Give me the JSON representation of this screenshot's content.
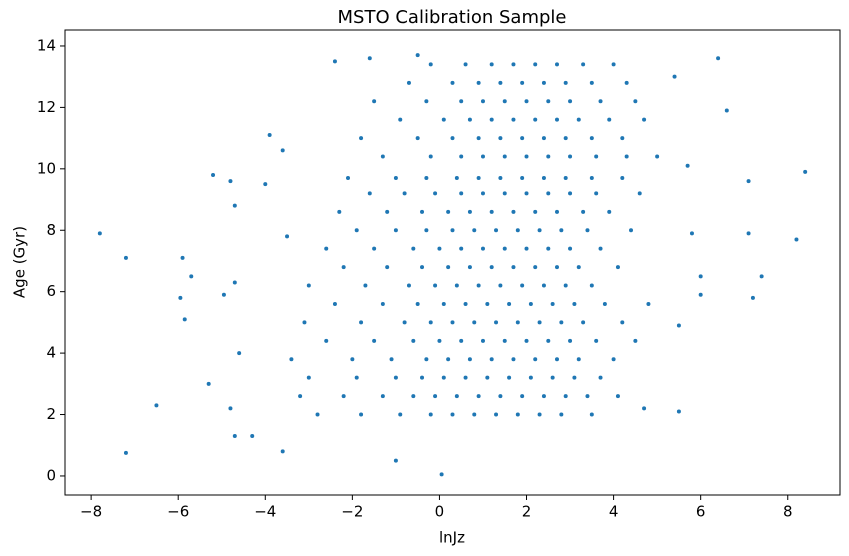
{
  "chart_data": {
    "type": "scatter",
    "title": "MSTO Calibration Sample",
    "x_label": "lnJz",
    "y_label": "Age (Gyr)",
    "color": "#1f77b4",
    "xlim": [
      -8.6,
      9.2
    ],
    "ylim": [
      -0.62,
      14.52
    ],
    "xticks": [
      {
        "value": -8,
        "label": "−8"
      },
      {
        "value": -6,
        "label": "−6"
      },
      {
        "value": -4,
        "label": "−4"
      },
      {
        "value": -2,
        "label": "−2"
      },
      0,
      2,
      4,
      6,
      8
    ],
    "yticks": [
      0,
      2,
      4,
      6,
      8,
      10,
      12,
      14
    ],
    "x": [
      -7.8,
      -7.2,
      -7.2,
      -6.5,
      -5.9,
      -5.95,
      -5.85,
      -5.7,
      -5.2,
      -5.3,
      -4.8,
      -4.7,
      -4.95,
      -4.7,
      -4.6,
      -4.8,
      -4.7,
      -4.0,
      -3.9,
      -3.6,
      -3.5,
      -4.3,
      -3.6,
      8.4,
      8.2,
      7.4,
      7.2,
      7.1,
      7.1,
      6.6,
      6.4,
      6.0,
      6.0,
      5.8,
      5.5,
      5.5,
      5.7,
      4.7,
      5.4,
      -2.4,
      -1.6,
      -0.5,
      0.05,
      -1.0,
      -2.8,
      -1.8,
      -0.9,
      -0.2,
      0.3,
      0.8,
      1.3,
      1.8,
      2.3,
      2.8,
      3.5,
      -3.2,
      -2.2,
      -1.3,
      -0.6,
      -0.1,
      0.4,
      0.9,
      1.4,
      1.9,
      2.4,
      2.9,
      3.4,
      4.1,
      -3.0,
      -1.9,
      -1.0,
      -0.4,
      0.1,
      0.6,
      1.1,
      1.6,
      2.1,
      2.6,
      3.1,
      3.7,
      -3.4,
      -2.0,
      -1.1,
      -0.3,
      0.2,
      0.7,
      1.2,
      1.7,
      2.2,
      2.7,
      3.2,
      4.0,
      -2.6,
      -1.5,
      -0.6,
      0,
      0.5,
      1,
      1.5,
      2,
      2.5,
      3,
      3.6,
      4.5,
      -3.1,
      -1.8,
      -0.8,
      -0.2,
      0.3,
      0.8,
      1.3,
      1.8,
      2.3,
      2.8,
      3.3,
      4.2,
      -2.4,
      -1.3,
      -0.5,
      0.1,
      0.6,
      1.1,
      1.6,
      2.1,
      2.6,
      3.1,
      3.8,
      4.8,
      -3.0,
      -1.7,
      -0.7,
      -0.1,
      0.4,
      0.9,
      1.4,
      1.9,
      2.4,
      2.9,
      3.5,
      -2.2,
      -1.2,
      -0.4,
      0.2,
      0.7,
      1.2,
      1.7,
      2.2,
      2.7,
      3.2,
      4.1,
      -2.6,
      -1.5,
      -0.6,
      0,
      0.5,
      1,
      1.5,
      2,
      2.5,
      3,
      3.7,
      -1.9,
      -1.0,
      -0.3,
      0.3,
      0.8,
      1.3,
      1.8,
      2.3,
      2.8,
      3.4,
      4.4,
      -2.3,
      -1.2,
      -0.4,
      0.2,
      0.7,
      1.2,
      1.7,
      2.2,
      2.7,
      3.3,
      3.9,
      -1.6,
      -0.8,
      -0.1,
      0.5,
      1.0,
      1.5,
      2.0,
      2.5,
      3.0,
      3.6,
      4.6,
      -2.1,
      -1.0,
      -0.3,
      0.4,
      0.9,
      1.4,
      1.9,
      2.4,
      2.9,
      3.5,
      4.2,
      -1.3,
      -0.2,
      0.5,
      1.0,
      1.5,
      2.0,
      2.5,
      3.0,
      3.6,
      4.3,
      5.0,
      -1.8,
      -0.5,
      0.3,
      0.9,
      1.4,
      1.9,
      2.4,
      2.9,
      3.5,
      4.2,
      -0.9,
      0.1,
      0.7,
      1.2,
      1.7,
      2.2,
      2.7,
      3.2,
      3.9,
      4.7,
      -1.5,
      -0.3,
      0.5,
      1.0,
      1.5,
      2.0,
      2.5,
      3.0,
      3.7,
      4.5,
      -0.7,
      0.3,
      0.9,
      1.4,
      1.9,
      2.4,
      2.9,
      3.5,
      4.3,
      -0.2,
      0.6,
      1.2,
      1.7,
      2.2,
      2.7,
      3.3,
      4.0
    ],
    "y": [
      7.9,
      7.1,
      0.75,
      2.3,
      7.1,
      5.8,
      5.1,
      6.5,
      9.8,
      3.0,
      9.6,
      8.8,
      5.9,
      6.3,
      4.0,
      2.2,
      1.3,
      9.5,
      11.1,
      10.6,
      7.8,
      1.3,
      0.8,
      9.9,
      7.7,
      6.5,
      5.8,
      9.6,
      7.9,
      11.9,
      13.6,
      5.9,
      6.5,
      7.9,
      4.9,
      2.1,
      10.1,
      2.2,
      13.0,
      13.5,
      13.6,
      13.7,
      0.05,
      0.5,
      2.0,
      2.0,
      2.0,
      2.0,
      2.0,
      2.0,
      2.0,
      2.0,
      2.0,
      2.0,
      2.0,
      2.6,
      2.6,
      2.6,
      2.6,
      2.6,
      2.6,
      2.6,
      2.6,
      2.6,
      2.6,
      2.6,
      2.6,
      2.6,
      3.2,
      3.2,
      3.2,
      3.2,
      3.2,
      3.2,
      3.2,
      3.2,
      3.2,
      3.2,
      3.2,
      3.2,
      3.8,
      3.8,
      3.8,
      3.8,
      3.8,
      3.8,
      3.8,
      3.8,
      3.8,
      3.8,
      3.8,
      3.8,
      4.4,
      4.4,
      4.4,
      4.4,
      4.4,
      4.4,
      4.4,
      4.4,
      4.4,
      4.4,
      4.4,
      4.4,
      5.0,
      5.0,
      5.0,
      5.0,
      5.0,
      5.0,
      5.0,
      5.0,
      5.0,
      5.0,
      5.0,
      5.0,
      5.6,
      5.6,
      5.6,
      5.6,
      5.6,
      5.6,
      5.6,
      5.6,
      5.6,
      5.6,
      5.6,
      5.6,
      6.2,
      6.2,
      6.2,
      6.2,
      6.2,
      6.2,
      6.2,
      6.2,
      6.2,
      6.2,
      6.2,
      6.8,
      6.8,
      6.8,
      6.8,
      6.8,
      6.8,
      6.8,
      6.8,
      6.8,
      6.8,
      6.8,
      7.4,
      7.4,
      7.4,
      7.4,
      7.4,
      7.4,
      7.4,
      7.4,
      7.4,
      7.4,
      7.4,
      8.0,
      8.0,
      8.0,
      8.0,
      8.0,
      8.0,
      8.0,
      8.0,
      8.0,
      8.0,
      8.0,
      8.6,
      8.6,
      8.6,
      8.6,
      8.6,
      8.6,
      8.6,
      8.6,
      8.6,
      8.6,
      8.6,
      9.2,
      9.2,
      9.2,
      9.2,
      9.2,
      9.2,
      9.2,
      9.2,
      9.2,
      9.2,
      9.2,
      9.7,
      9.7,
      9.7,
      9.7,
      9.7,
      9.7,
      9.7,
      9.7,
      9.7,
      9.7,
      9.7,
      10.4,
      10.4,
      10.4,
      10.4,
      10.4,
      10.4,
      10.4,
      10.4,
      10.4,
      10.4,
      10.4,
      11.0,
      11.0,
      11.0,
      11.0,
      11.0,
      11.0,
      11.0,
      11.0,
      11.0,
      11.0,
      11.6,
      11.6,
      11.6,
      11.6,
      11.6,
      11.6,
      11.6,
      11.6,
      11.6,
      11.6,
      12.2,
      12.2,
      12.2,
      12.2,
      12.2,
      12.2,
      12.2,
      12.2,
      12.2,
      12.2,
      12.8,
      12.8,
      12.8,
      12.8,
      12.8,
      12.8,
      12.8,
      12.8,
      12.8,
      13.4,
      13.4,
      13.4,
      13.4,
      13.4,
      13.4,
      13.4,
      13.4
    ]
  }
}
